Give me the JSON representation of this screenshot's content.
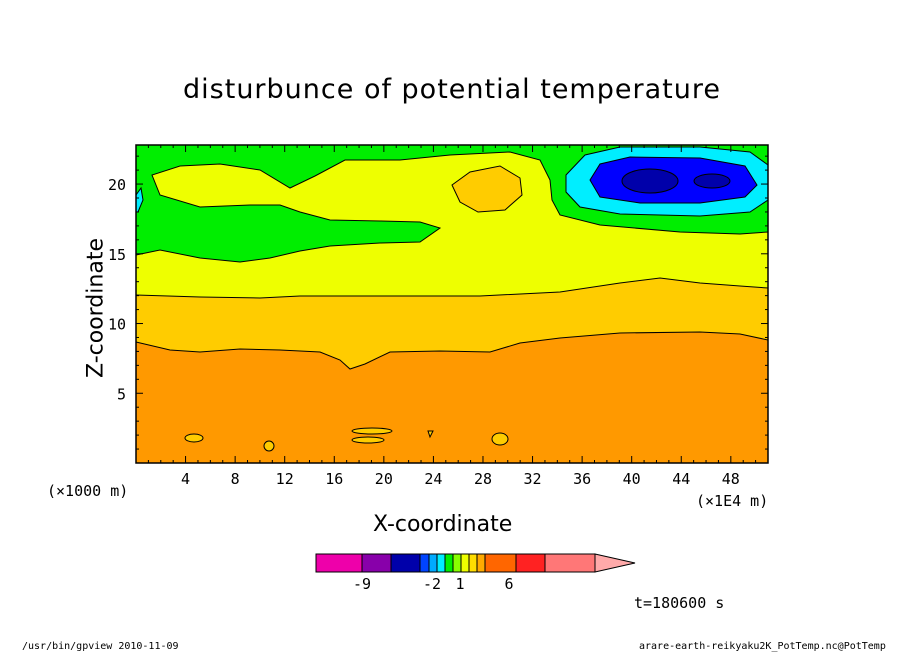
{
  "chart_data": {
    "type": "heatmap",
    "title": "disturbunce of potential temperature",
    "xlabel": "X-coordinate",
    "ylabel": "Z-coordinate",
    "x_unit_left": "(×1000 m)",
    "x_unit_right": "(×1E4 m)",
    "xlim": [
      0,
      51
    ],
    "ylim": [
      0,
      22.8
    ],
    "x_ticks": [
      4,
      8,
      12,
      16,
      20,
      24,
      28,
      32,
      36,
      40,
      44,
      48
    ],
    "y_ticks": [
      5,
      10,
      15,
      20
    ],
    "colors": {
      "green": "#00ee00",
      "yellow": "#eeff00",
      "gold": "#ffcc00",
      "orange": "#ff9900",
      "cyan": "#00eeff",
      "blue": "#0000ff",
      "darkblue": "#0000aa"
    },
    "colorbar": {
      "colors": [
        "#ee00aa",
        "#8800aa",
        "#0000aa",
        "#0044ff",
        "#00aaff",
        "#00eeff",
        "#00ee00",
        "#88ff00",
        "#eeff00",
        "#ffdd00",
        "#ffaa00",
        "#ff6600",
        "#ff2222",
        "#ff7777",
        "#ffaaaa"
      ],
      "labels": [
        "-9",
        "-2",
        "1",
        "6"
      ],
      "label_values": [
        -9,
        -2,
        1,
        6
      ]
    },
    "time_label": "t=180600 s"
  },
  "footer": {
    "left": "/usr/bin/gpview   2010-11-09",
    "right": "arare-earth-reikyaku2K_PotTemp.nc@PotTemp"
  }
}
